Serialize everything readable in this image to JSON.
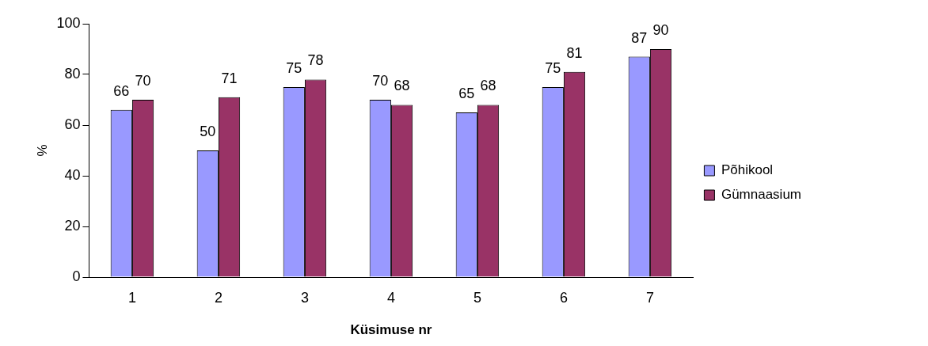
{
  "chart_data": {
    "type": "bar",
    "xlabel": "Küsimuse nr",
    "ylabel": "%",
    "categories": [
      "1",
      "2",
      "3",
      "4",
      "5",
      "6",
      "7"
    ],
    "series": [
      {
        "name": "Põhikool",
        "color": "#9999ff",
        "values": [
          66,
          50,
          75,
          70,
          65,
          75,
          87
        ]
      },
      {
        "name": "Gümnaasium",
        "color": "#993366",
        "values": [
          70,
          71,
          78,
          68,
          68,
          81,
          90
        ]
      }
    ],
    "ylim": [
      0,
      100
    ],
    "yticks": [
      0,
      20,
      40,
      60,
      80,
      100
    ],
    "grid": false,
    "legend": "right",
    "data_labels": true
  }
}
